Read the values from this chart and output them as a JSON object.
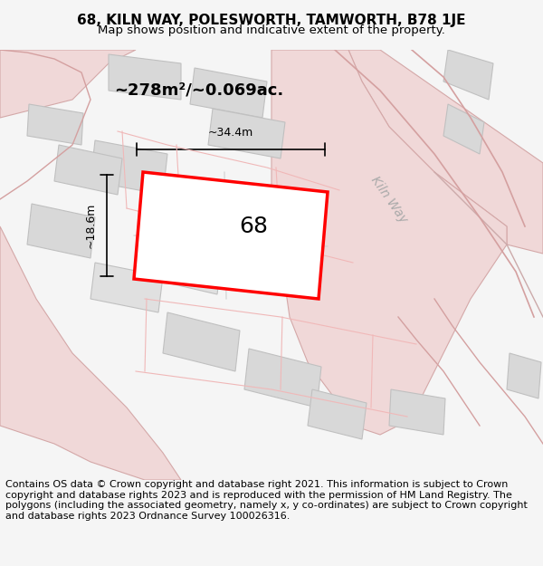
{
  "title_line1": "68, KILN WAY, POLESWORTH, TAMWORTH, B78 1JE",
  "title_line2": "Map shows position and indicative extent of the property.",
  "area_label": "~278m²/~0.069ac.",
  "plot_number": "68",
  "width_label": "~34.4m",
  "height_label": "~18.6m",
  "footer_text": "Contains OS data © Crown copyright and database right 2021. This information is subject to Crown copyright and database rights 2023 and is reproduced with the permission of HM Land Registry. The polygons (including the associated geometry, namely x, y co-ordinates) are subject to Crown copyright and database rights 2023 Ordnance Survey 100026316.",
  "bg_color": "#f5f5f5",
  "map_bg": "#ffffff",
  "plot_fill": "#e8e8e8",
  "plot_border": "#ff0000",
  "road_color": "#e8c8c8",
  "road_stroke": "#d4a0a0",
  "building_fill": "#d8d8d8",
  "building_stroke": "#c0c0c0",
  "kiln_way_label": "Kiln Way",
  "title_fontsize": 11,
  "subtitle_fontsize": 9.5,
  "footer_fontsize": 8.0
}
